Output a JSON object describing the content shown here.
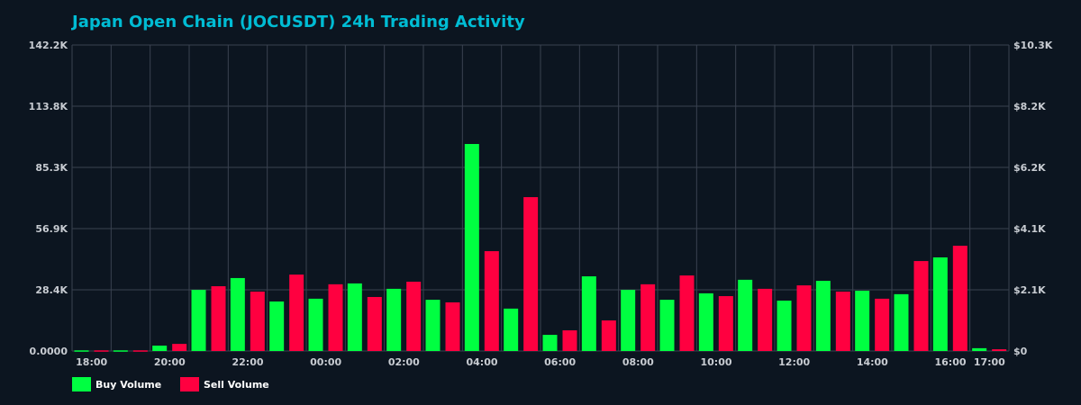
{
  "chart_data": {
    "type": "bar",
    "title": "Japan Open Chain (JOCUSDT) 24h Trading Activity",
    "categories": [
      "18:00",
      "19:00",
      "20:00",
      "21:00",
      "22:00",
      "23:00",
      "00:00",
      "01:00",
      "02:00",
      "03:00",
      "04:00",
      "05:00",
      "06:00",
      "07:00",
      "08:00",
      "09:00",
      "10:00",
      "11:00",
      "12:00",
      "13:00",
      "14:00",
      "15:00",
      "16:00",
      "17:00"
    ],
    "x_tick_labels": [
      "18:00",
      "20:00",
      "22:00",
      "00:00",
      "02:00",
      "04:00",
      "06:00",
      "08:00",
      "10:00",
      "12:00",
      "14:00",
      "16:00",
      "17:00"
    ],
    "y_tick_labels": [
      "0.0000",
      "28.4K",
      "56.9K",
      "85.3K",
      "113.8K",
      "142.2K"
    ],
    "y2_tick_labels": [
      "$0",
      "$2.1K",
      "$4.1K",
      "$6.2K",
      "$8.2K",
      "$10.3K"
    ],
    "ylim": [
      0,
      142200
    ],
    "y2lim": [
      0,
      10300
    ],
    "grid": true,
    "legend_position": "bottom-left",
    "series": [
      {
        "name": "Buy Volume",
        "color": "#00ff41",
        "values": [
          300,
          300,
          2500,
          28400,
          33900,
          23000,
          24300,
          31400,
          28900,
          23800,
          96200,
          19700,
          7500,
          34700,
          28400,
          23800,
          26800,
          33100,
          23400,
          32600,
          28000,
          26400,
          43500,
          1300
        ]
      },
      {
        "name": "Sell Volume",
        "color": "#ff0040",
        "values": [
          300,
          300,
          3300,
          30100,
          27600,
          35500,
          31000,
          25100,
          32200,
          22600,
          46400,
          71500,
          9600,
          14200,
          31000,
          35100,
          25500,
          28900,
          30500,
          27600,
          24300,
          41800,
          48900,
          800
        ]
      }
    ]
  },
  "colors": {
    "background": "#0c1520",
    "title": "#00bcd4",
    "grid": "#3a4250"
  }
}
